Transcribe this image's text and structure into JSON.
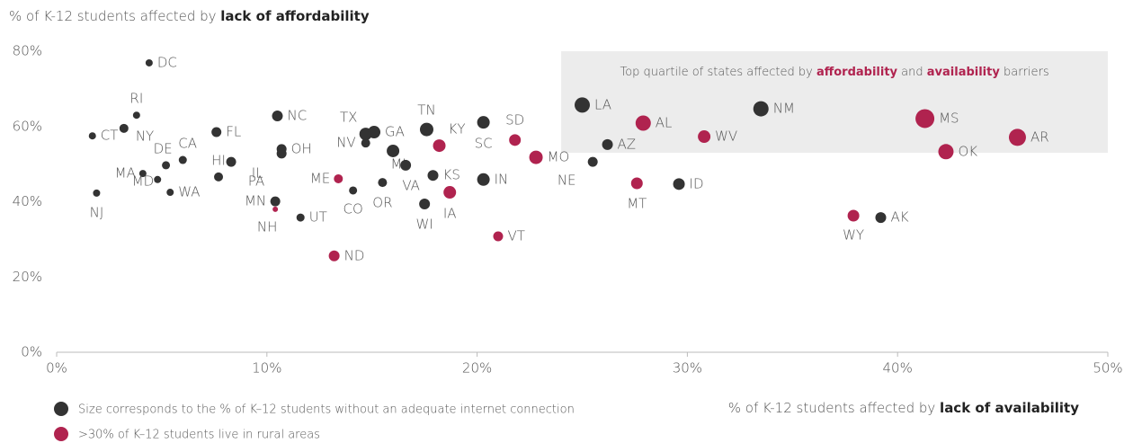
{
  "chart_data": {
    "type": "scatter",
    "y_title": [
      "% of K-12 students affected by ",
      "lack of affordability"
    ],
    "x_title": [
      "% of K-12 students affected by ",
      "lack of availability"
    ],
    "annotation": {
      "text": [
        "Top quartile of states affected by ",
        "affordability",
        " and ",
        "availability",
        " barriers"
      ],
      "xlim": [
        24,
        50
      ],
      "ylim": [
        53,
        80
      ]
    },
    "xlim": [
      0,
      50
    ],
    "xticks": [
      {
        "value": 0,
        "label": "0%"
      },
      {
        "value": 10,
        "label": "10%"
      },
      {
        "value": 20,
        "label": "20%"
      },
      {
        "value": 30,
        "label": "30%"
      },
      {
        "value": 40,
        "label": "40%"
      },
      {
        "value": 50,
        "label": "50%"
      }
    ],
    "ylim": [
      0,
      80
    ],
    "yticks": [
      {
        "value": 0,
        "label": "0%"
      },
      {
        "value": 20,
        "label": "20%"
      },
      {
        "value": 40,
        "label": "40%"
      },
      {
        "value": 60,
        "label": "60%"
      },
      {
        "value": 80,
        "label": "80%"
      }
    ],
    "grid": false,
    "series": [
      {
        "name": "Size corresponds to the % of K–12 students without an adequate internet connection",
        "color": "#333333",
        "labels": [
          "DC",
          "RI",
          "CT",
          "NY",
          "DE",
          "CA",
          "MA",
          "MD",
          "WA",
          "NJ",
          "HI",
          "FL",
          "PA",
          "IL",
          "OH",
          "NC",
          "MN",
          "UT",
          "TX",
          "GA",
          "NV",
          "CO",
          "MI",
          "OR",
          "VA",
          "TN",
          "KS",
          "WI",
          "SC",
          "IN",
          "LA",
          "AZ",
          "NE",
          "ID",
          "NM",
          "AK"
        ],
        "x": [
          4.4,
          3.8,
          1.7,
          3.2,
          5.2,
          6.0,
          4.1,
          4.8,
          5.4,
          1.9,
          7.7,
          7.6,
          8.3,
          10.7,
          10.7,
          10.5,
          10.4,
          11.6,
          14.7,
          15.1,
          14.7,
          14.1,
          16.0,
          15.5,
          16.6,
          17.6,
          17.9,
          17.5,
          20.3,
          20.3,
          25.0,
          26.2,
          25.5,
          29.6,
          33.5,
          39.2
        ],
        "values": [
          76.9,
          63.0,
          57.5,
          59.5,
          49.7,
          51.1,
          47.5,
          45.9,
          42.5,
          42.3,
          46.6,
          58.5,
          50.6,
          52.8,
          54.0,
          62.8,
          40.1,
          35.8,
          58.0,
          58.5,
          55.6,
          43.0,
          53.5,
          45.1,
          49.7,
          59.2,
          47.0,
          39.4,
          61.1,
          45.9,
          65.7,
          55.2,
          50.6,
          44.7,
          64.7,
          35.8
        ],
        "sizes": [
          16,
          16,
          16,
          20,
          18,
          18,
          16,
          16,
          16,
          16,
          20,
          22,
          22,
          22,
          22,
          24,
          22,
          18,
          28,
          28,
          20,
          18,
          28,
          20,
          24,
          30,
          24,
          24,
          28,
          28,
          34,
          24,
          22,
          26,
          34,
          24
        ]
      },
      {
        "name": ">30% of K–12 students live in rural areas",
        "color": "#b0234f",
        "labels": [
          "NH",
          "ME",
          "ND",
          "KY",
          "IA",
          "VT",
          "SD",
          "MO",
          "AL",
          "MT",
          "WV",
          "WY",
          "MS",
          "OK",
          "AR"
        ],
        "x": [
          10.4,
          13.4,
          13.2,
          18.2,
          18.7,
          21.0,
          21.8,
          22.8,
          27.9,
          27.6,
          30.8,
          37.9,
          41.3,
          42.3,
          45.7
        ],
        "values": [
          38.0,
          46.1,
          25.6,
          54.9,
          42.5,
          30.8,
          56.4,
          51.8,
          60.9,
          44.9,
          57.3,
          36.3,
          62.1,
          53.3,
          57.1
        ],
        "sizes": [
          12,
          20,
          24,
          28,
          28,
          22,
          26,
          30,
          34,
          26,
          28,
          26,
          42,
          34,
          38
        ]
      }
    ]
  }
}
